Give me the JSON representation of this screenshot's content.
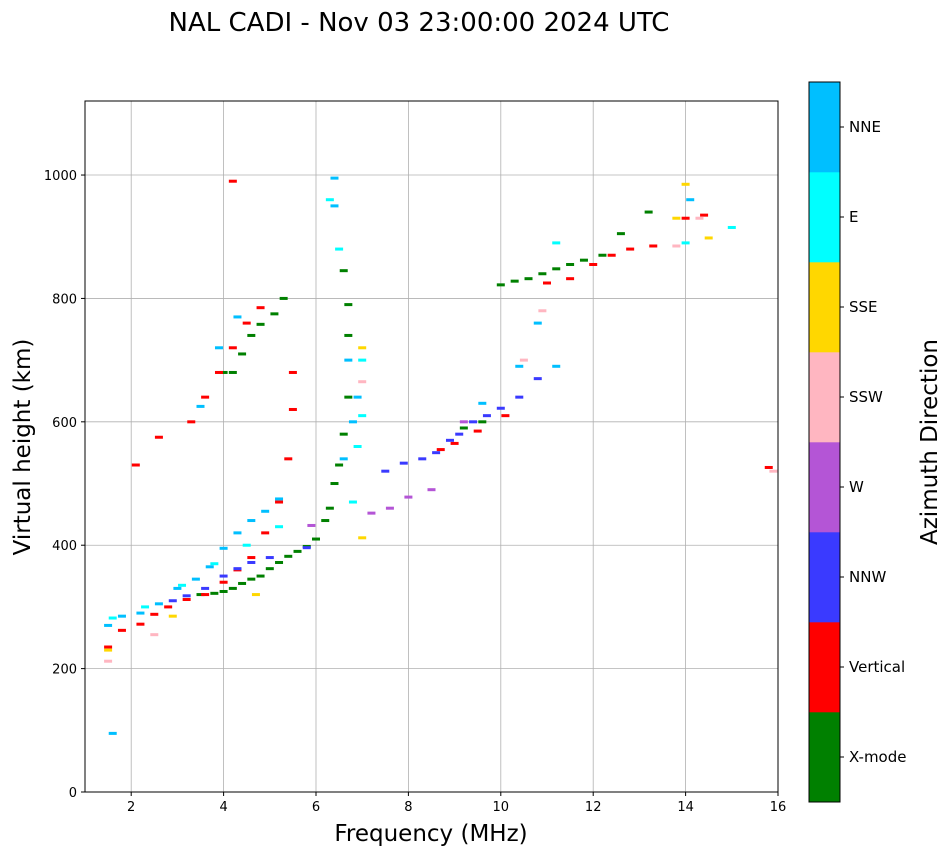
{
  "chart_data": {
    "type": "scatter",
    "title": "NAL CADI - Nov 03 23:00:00 2024 UTC",
    "xlabel": "Frequency (MHz)",
    "ylabel": "Virtual height (km)",
    "xlim": [
      1,
      16
    ],
    "ylim": [
      0,
      1120
    ],
    "xticks": [
      2,
      4,
      6,
      8,
      10,
      12,
      14,
      16
    ],
    "yticks": [
      0,
      200,
      400,
      600,
      800,
      1000
    ],
    "grid": true,
    "colorbar": {
      "label": "Azimuth Direction",
      "categories": [
        {
          "name": "X-mode",
          "color": "#008000"
        },
        {
          "name": "Vertical",
          "color": "#ff0000"
        },
        {
          "name": "NNW",
          "color": "#3a3aff"
        },
        {
          "name": "W",
          "color": "#b455d6"
        },
        {
          "name": "SSW",
          "color": "#ffb6c1"
        },
        {
          "name": "SSE",
          "color": "#ffd700"
        },
        {
          "name": "E",
          "color": "#00ffff"
        },
        {
          "name": "NNE",
          "color": "#00bfff"
        }
      ]
    },
    "series": [
      {
        "name": "X-mode",
        "color": "#008000",
        "points": [
          [
            3.5,
            320
          ],
          [
            3.8,
            322
          ],
          [
            4.0,
            325
          ],
          [
            4.2,
            330
          ],
          [
            4.4,
            338
          ],
          [
            4.6,
            345
          ],
          [
            4.8,
            350
          ],
          [
            5.0,
            362
          ],
          [
            5.2,
            372
          ],
          [
            5.4,
            382
          ],
          [
            5.6,
            390
          ],
          [
            5.8,
            398
          ],
          [
            6.0,
            410
          ],
          [
            6.2,
            440
          ],
          [
            6.3,
            460
          ],
          [
            6.4,
            500
          ],
          [
            6.5,
            530
          ],
          [
            6.6,
            580
          ],
          [
            6.7,
            640
          ],
          [
            6.7,
            740
          ],
          [
            6.7,
            790
          ],
          [
            6.6,
            845
          ],
          [
            4.0,
            680
          ],
          [
            4.2,
            680
          ],
          [
            4.4,
            710
          ],
          [
            4.6,
            740
          ],
          [
            4.8,
            758
          ],
          [
            5.1,
            775
          ],
          [
            5.3,
            800
          ],
          [
            9.2,
            590
          ],
          [
            9.6,
            600
          ],
          [
            10.0,
            822
          ],
          [
            10.3,
            828
          ],
          [
            10.6,
            832
          ],
          [
            10.9,
            840
          ],
          [
            11.2,
            848
          ],
          [
            11.5,
            855
          ],
          [
            11.8,
            862
          ],
          [
            12.2,
            870
          ],
          [
            12.6,
            905
          ],
          [
            13.2,
            940
          ]
        ]
      },
      {
        "name": "Vertical",
        "color": "#ff0000",
        "points": [
          [
            1.5,
            235
          ],
          [
            1.8,
            262
          ],
          [
            2.2,
            272
          ],
          [
            2.5,
            288
          ],
          [
            2.8,
            300
          ],
          [
            3.2,
            312
          ],
          [
            3.6,
            320
          ],
          [
            4.0,
            340
          ],
          [
            4.3,
            360
          ],
          [
            4.6,
            380
          ],
          [
            4.9,
            420
          ],
          [
            5.2,
            470
          ],
          [
            5.4,
            540
          ],
          [
            5.5,
            620
          ],
          [
            5.5,
            680
          ],
          [
            3.3,
            600
          ],
          [
            3.6,
            640
          ],
          [
            3.9,
            680
          ],
          [
            4.2,
            720
          ],
          [
            4.5,
            760
          ],
          [
            4.8,
            785
          ],
          [
            8.7,
            555
          ],
          [
            9.0,
            565
          ],
          [
            9.5,
            585
          ],
          [
            10.1,
            610
          ],
          [
            11.0,
            825
          ],
          [
            11.5,
            832
          ],
          [
            12.0,
            855
          ],
          [
            12.4,
            870
          ],
          [
            12.8,
            880
          ],
          [
            13.3,
            885
          ],
          [
            14.0,
            930
          ],
          [
            14.4,
            935
          ],
          [
            15.8,
            526
          ],
          [
            4.2,
            990
          ],
          [
            2.1,
            530
          ],
          [
            2.6,
            575
          ]
        ]
      },
      {
        "name": "NNW",
        "color": "#3a3aff",
        "points": [
          [
            2.9,
            310
          ],
          [
            3.2,
            318
          ],
          [
            3.6,
            330
          ],
          [
            4.0,
            350
          ],
          [
            4.3,
            362
          ],
          [
            4.6,
            372
          ],
          [
            5.0,
            380
          ],
          [
            5.8,
            396
          ],
          [
            7.5,
            520
          ],
          [
            7.9,
            533
          ],
          [
            8.3,
            540
          ],
          [
            8.6,
            550
          ],
          [
            8.9,
            570
          ],
          [
            9.1,
            580
          ],
          [
            9.4,
            600
          ],
          [
            9.7,
            610
          ],
          [
            10.0,
            622
          ],
          [
            10.4,
            640
          ],
          [
            10.8,
            670
          ]
        ]
      },
      {
        "name": "W",
        "color": "#b455d6",
        "points": [
          [
            7.2,
            452
          ],
          [
            7.6,
            460
          ],
          [
            8.0,
            478
          ],
          [
            8.5,
            490
          ],
          [
            9.2,
            600
          ],
          [
            5.9,
            432
          ]
        ]
      },
      {
        "name": "SSW",
        "color": "#ffb6c1",
        "points": [
          [
            1.5,
            212
          ],
          [
            2.5,
            255
          ],
          [
            7.0,
            665
          ],
          [
            10.5,
            700
          ],
          [
            10.9,
            780
          ],
          [
            13.8,
            885
          ],
          [
            14.3,
            930
          ],
          [
            15.9,
            520
          ]
        ]
      },
      {
        "name": "SSE",
        "color": "#ffd700",
        "points": [
          [
            1.5,
            230
          ],
          [
            2.9,
            285
          ],
          [
            4.7,
            320
          ],
          [
            7.0,
            412
          ],
          [
            7.0,
            720
          ],
          [
            13.8,
            930
          ],
          [
            14.0,
            985
          ],
          [
            14.5,
            898
          ]
        ]
      },
      {
        "name": "E",
        "color": "#00ffff",
        "points": [
          [
            1.6,
            282
          ],
          [
            2.3,
            300
          ],
          [
            3.1,
            335
          ],
          [
            3.8,
            370
          ],
          [
            4.5,
            400
          ],
          [
            5.2,
            430
          ],
          [
            6.8,
            470
          ],
          [
            6.9,
            560
          ],
          [
            7.0,
            610
          ],
          [
            7.0,
            700
          ],
          [
            6.5,
            880
          ],
          [
            6.3,
            960
          ],
          [
            11.2,
            890
          ],
          [
            14.0,
            890
          ],
          [
            15.0,
            915
          ]
        ]
      },
      {
        "name": "NNE",
        "color": "#00bfff",
        "points": [
          [
            1.5,
            270
          ],
          [
            1.8,
            285
          ],
          [
            2.2,
            290
          ],
          [
            2.6,
            305
          ],
          [
            3.0,
            330
          ],
          [
            3.4,
            345
          ],
          [
            3.7,
            365
          ],
          [
            4.0,
            395
          ],
          [
            4.3,
            420
          ],
          [
            4.6,
            440
          ],
          [
            4.9,
            455
          ],
          [
            5.2,
            475
          ],
          [
            6.6,
            540
          ],
          [
            6.8,
            600
          ],
          [
            6.9,
            640
          ],
          [
            6.7,
            700
          ],
          [
            6.4,
            950
          ],
          [
            6.4,
            995
          ],
          [
            3.5,
            625
          ],
          [
            3.9,
            720
          ],
          [
            4.3,
            770
          ],
          [
            9.6,
            630
          ],
          [
            10.4,
            690
          ],
          [
            10.8,
            760
          ],
          [
            11.2,
            690
          ],
          [
            14.1,
            960
          ],
          [
            1.6,
            95
          ]
        ]
      }
    ]
  }
}
